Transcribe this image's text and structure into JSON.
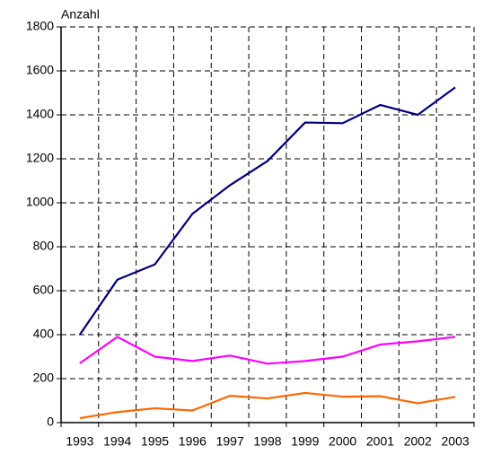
{
  "chart_data": {
    "type": "line",
    "ylabel": "Anzahl",
    "categories": [
      "1993",
      "1994",
      "1995",
      "1996",
      "1997",
      "1998",
      "1999",
      "2000",
      "2001",
      "2002",
      "2003"
    ],
    "series": [
      {
        "color": "#000080",
        "values": [
          400,
          650,
          720,
          950,
          1080,
          1190,
          1365,
          1362,
          1445,
          1400,
          1525
        ]
      },
      {
        "color": "#ff00ff",
        "values": [
          270,
          390,
          300,
          280,
          305,
          268,
          280,
          300,
          355,
          370,
          390
        ]
      },
      {
        "color": "#ff6600",
        "values": [
          20,
          48,
          65,
          55,
          122,
          110,
          135,
          118,
          120,
          88,
          117
        ]
      }
    ],
    "ylim": [
      0,
      1800
    ],
    "yticks": [
      0,
      200,
      400,
      600,
      800,
      1000,
      1200,
      1400,
      1600,
      1800
    ],
    "grid": true
  }
}
